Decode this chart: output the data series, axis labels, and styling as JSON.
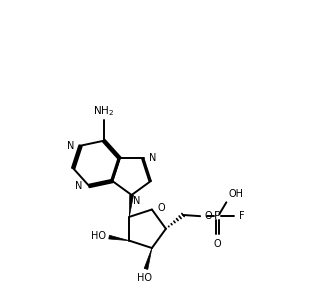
{
  "bg_color": "#ffffff",
  "line_color": "#000000",
  "line_width": 1.4,
  "font_size": 7.0,
  "fig_width": 3.1,
  "fig_height": 2.9,
  "dpi": 100,
  "xlim": [
    0,
    10
  ],
  "ylim": [
    0,
    10
  ]
}
